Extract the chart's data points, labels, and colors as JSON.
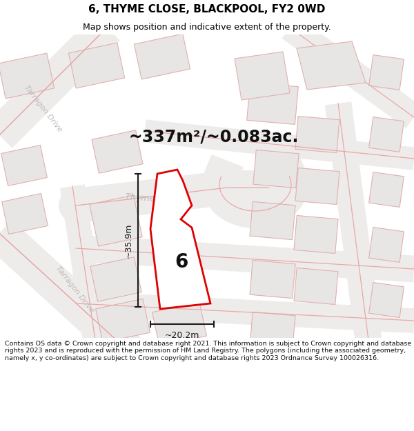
{
  "title": "6, THYME CLOSE, BLACKPOOL, FY2 0WD",
  "subtitle": "Map shows position and indicative extent of the property.",
  "area_text": "~337m²/~0.083ac.",
  "dim_width": "~20.2m",
  "dim_height": "~35.9m",
  "property_label": "6",
  "footer": "Contains OS data © Crown copyright and database right 2021. This information is subject to Crown copyright and database rights 2023 and is reproduced with the permission of HM Land Registry. The polygons (including the associated geometry, namely x, y co-ordinates) are subject to Crown copyright and database rights 2023 Ordnance Survey 100026316.",
  "bg_color": "#ffffff",
  "map_bg": "#f7f5f3",
  "road_fill": "#f0eeec",
  "road_line": "#e8a8a8",
  "building_fill": "#e8e6e4",
  "building_edge": "#e0b0b0",
  "property_fill": "#ffffff",
  "property_edge": "#dd0000",
  "title_color": "#000000",
  "street_label_color": "#bbbbbb",
  "dim_color": "#1a1a1a",
  "title_fontsize": 11,
  "subtitle_fontsize": 9,
  "area_fontsize": 17,
  "label_fontsize": 20,
  "dim_fontsize": 9,
  "street_fontsize": 9,
  "footer_fontsize": 6.8
}
